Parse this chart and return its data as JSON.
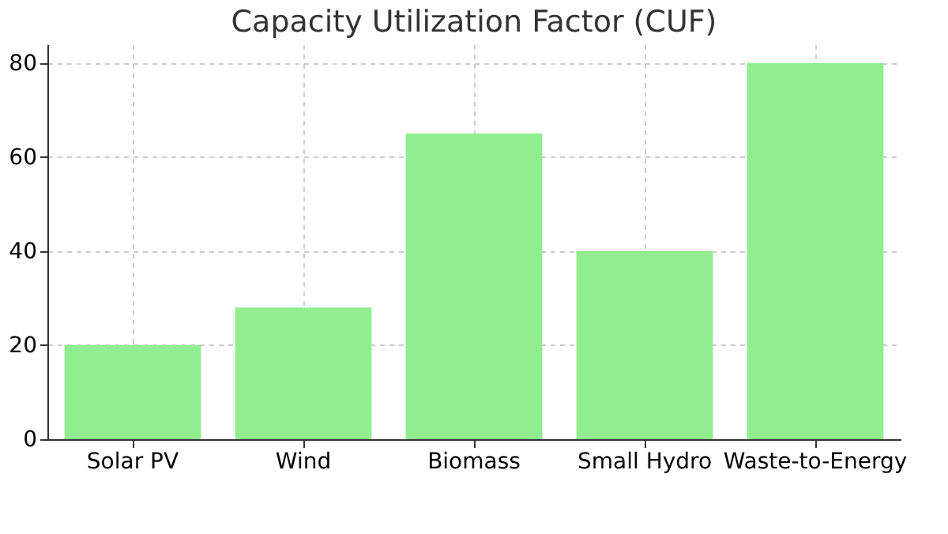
{
  "chart_data": {
    "type": "bar",
    "title": "Capacity Utilization Factor (CUF)",
    "categories": [
      "Solar PV",
      "Wind",
      "Biomass",
      "Small Hydro",
      "Waste-to-Energy"
    ],
    "values": [
      20,
      28,
      65,
      40,
      80
    ],
    "color": "#90ee90",
    "ylim": [
      0,
      84
    ],
    "yticks": [
      0,
      20,
      40,
      60,
      80
    ],
    "grid": true
  }
}
